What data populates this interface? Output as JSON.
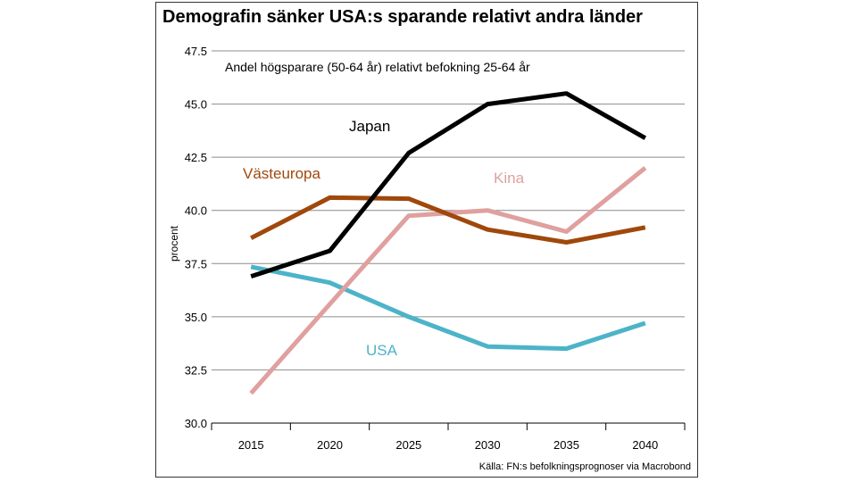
{
  "chart_data": {
    "type": "line",
    "title": "Demografin sänker USA:s sparande relativt andra länder",
    "subtitle": "Andel högsparare (50-64 år) relativt befokning 25-64 år",
    "ylabel": "procent",
    "xlabel": "",
    "source": "Källa: FN:s befolkningsprognoser via Macrobond",
    "ylim": [
      30,
      47.5
    ],
    "yticks": [
      "30.0",
      "32.5",
      "35.0",
      "37.5",
      "40.0",
      "42.5",
      "45.0",
      "47.5"
    ],
    "categories": [
      "2015",
      "2020",
      "2025",
      "2030",
      "2035",
      "2040"
    ],
    "grid": true,
    "legend": "inline labels",
    "series": [
      {
        "name": "Japan",
        "color": "#000000",
        "values": [
          36.9,
          38.1,
          42.7,
          45.0,
          45.5,
          43.4
        ]
      },
      {
        "name": "Västeuropa",
        "color": "#a0480c",
        "values": [
          38.7,
          40.6,
          40.55,
          39.1,
          38.5,
          39.2
        ]
      },
      {
        "name": "Kina",
        "color": "#e0a0a0",
        "values": [
          31.4,
          35.6,
          39.75,
          40.0,
          39.0,
          42.0
        ]
      },
      {
        "name": "USA",
        "color": "#4db3c8",
        "values": [
          37.35,
          36.6,
          35.0,
          33.6,
          33.5,
          34.7
        ]
      }
    ]
  }
}
